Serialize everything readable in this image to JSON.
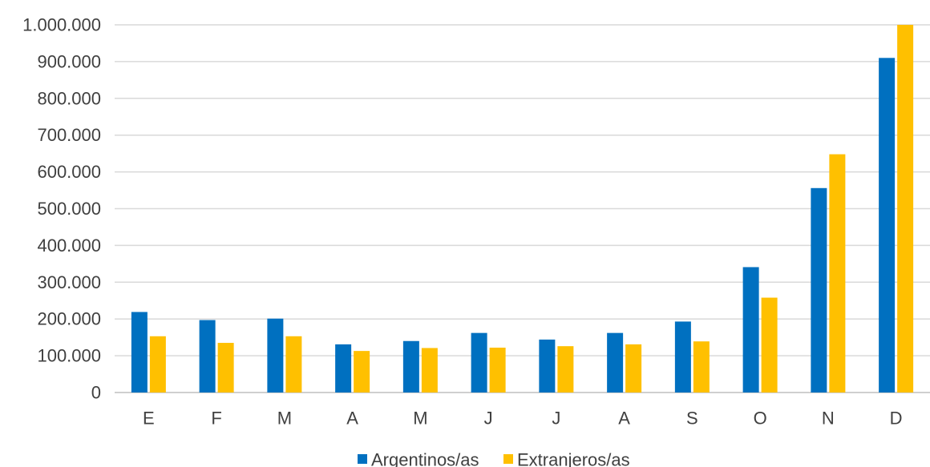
{
  "chart_data": {
    "type": "bar",
    "categories": [
      "E",
      "F",
      "M",
      "A",
      "M",
      "J",
      "J",
      "A",
      "S",
      "O",
      "N",
      "D"
    ],
    "series": [
      {
        "name": "Argentinos/as",
        "color": "#0070C0",
        "values": [
          219000,
          197000,
          201000,
          131000,
          140000,
          162000,
          144000,
          162000,
          193000,
          341000,
          556000,
          910000
        ]
      },
      {
        "name": "Extranjeros/as",
        "color": "#FFC000",
        "values": [
          153000,
          135000,
          153000,
          113000,
          121000,
          122000,
          126000,
          131000,
          139000,
          258000,
          648000,
          1000000
        ]
      }
    ],
    "ylim": [
      0,
      1000000
    ],
    "yticks": [
      {
        "value": 0,
        "label": "0"
      },
      {
        "value": 100000,
        "label": "100.000"
      },
      {
        "value": 200000,
        "label": "200.000"
      },
      {
        "value": 300000,
        "label": "300.000"
      },
      {
        "value": 400000,
        "label": "400.000"
      },
      {
        "value": 500000,
        "label": "500.000"
      },
      {
        "value": 600000,
        "label": "600.000"
      },
      {
        "value": 700000,
        "label": "700.000"
      },
      {
        "value": 800000,
        "label": "800.000"
      },
      {
        "value": 900000,
        "label": "900.000"
      },
      {
        "value": 1000000,
        "label": "1.000.000"
      }
    ],
    "grid": true,
    "legend": "bottom",
    "title": "",
    "xlabel": "",
    "ylabel": ""
  }
}
